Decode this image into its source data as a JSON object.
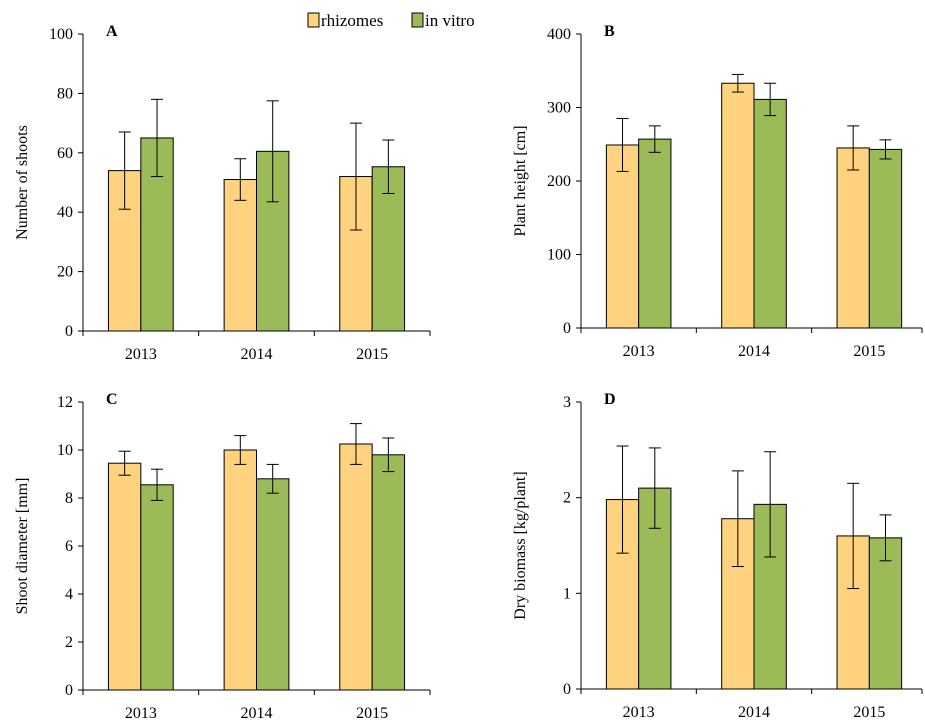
{
  "legend": {
    "position": "top-center",
    "items": [
      {
        "label": "rhizomes",
        "color": "#FFD27F"
      },
      {
        "label": "in vitro",
        "color": "#9BBB59"
      }
    ]
  },
  "chart_data": [
    {
      "type": "bar",
      "panel_label": "A",
      "ylabel": "Number of shoots",
      "ylim": [
        0,
        100
      ],
      "yticks": [
        0,
        20,
        40,
        60,
        80,
        100
      ],
      "grid": false,
      "categories": [
        "2013",
        "2014",
        "2015"
      ],
      "series": [
        {
          "name": "rhizomes",
          "color": "#FFD27F",
          "values": [
            54,
            51,
            52
          ],
          "errors": [
            13,
            7,
            18
          ]
        },
        {
          "name": "in vitro",
          "color": "#9BBB59",
          "values": [
            65,
            60.5,
            55.3
          ],
          "errors": [
            13,
            17,
            9
          ]
        }
      ]
    },
    {
      "type": "bar",
      "panel_label": "B",
      "ylabel": "Plant height [cm]",
      "ylim": [
        0,
        400
      ],
      "yticks": [
        0,
        100,
        200,
        300,
        400
      ],
      "grid": false,
      "categories": [
        "2013",
        "2014",
        "2015"
      ],
      "series": [
        {
          "name": "rhizomes",
          "color": "#FFD27F",
          "values": [
            249,
            333,
            245
          ],
          "errors": [
            36,
            12,
            30
          ]
        },
        {
          "name": "in vitro",
          "color": "#9BBB59",
          "values": [
            257,
            311,
            243
          ],
          "errors": [
            18,
            22,
            13
          ]
        }
      ]
    },
    {
      "type": "bar",
      "panel_label": "C",
      "ylabel": "Shoot diameter [mm]",
      "ylim": [
        0,
        12
      ],
      "yticks": [
        0,
        2,
        4,
        6,
        8,
        10,
        12
      ],
      "grid": false,
      "categories": [
        "2013",
        "2014",
        "2015"
      ],
      "series": [
        {
          "name": "rhizomes",
          "color": "#FFD27F",
          "values": [
            9.45,
            10,
            10.25
          ],
          "errors": [
            0.5,
            0.6,
            0.85
          ]
        },
        {
          "name": "in vitro",
          "color": "#9BBB59",
          "values": [
            8.55,
            8.8,
            9.8
          ],
          "errors": [
            0.65,
            0.6,
            0.7
          ]
        }
      ]
    },
    {
      "type": "bar",
      "panel_label": "D",
      "ylabel": "Dry biomass [kg/plant]",
      "ylim": [
        0,
        3
      ],
      "yticks": [
        0,
        1,
        2,
        3
      ],
      "grid": false,
      "categories": [
        "2013",
        "2014",
        "2015"
      ],
      "series": [
        {
          "name": "rhizomes",
          "color": "#FFD27F",
          "values": [
            1.98,
            1.78,
            1.6
          ],
          "errors": [
            0.56,
            0.5,
            0.55
          ]
        },
        {
          "name": "in vitro",
          "color": "#9BBB59",
          "values": [
            2.1,
            1.93,
            1.58
          ],
          "errors": [
            0.42,
            0.55,
            0.24
          ]
        }
      ]
    }
  ]
}
